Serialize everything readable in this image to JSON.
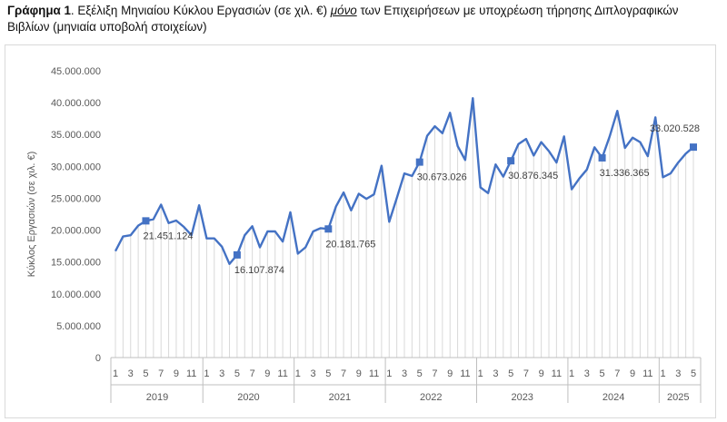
{
  "caption": {
    "label": "Γράφημα 1",
    "text_before": ". Εξέλιξη Μηνιαίου Κύκλου Εργασιών (σε χιλ. €) ",
    "emphasis": "μόνο",
    "text_after": " των Επιχειρήσεων με υποχρέωση τήρησης Διπλογραφικών Βιβλίων (μηνιαία υποβολή στοιχείων)"
  },
  "chart_data": {
    "type": "line",
    "ylabel": "Κύκλος Εργασιών (σε χιλ. €)",
    "ylim": [
      0,
      45000000
    ],
    "y_ticks": [
      "0",
      "5.000.000",
      "10.000.000",
      "15.000.000",
      "20.000.000",
      "25.000.000",
      "30.000.000",
      "35.000.000",
      "40.000.000",
      "45.000.000"
    ],
    "y_tick_values": [
      0,
      5000000,
      10000000,
      15000000,
      20000000,
      25000000,
      30000000,
      35000000,
      40000000,
      45000000
    ],
    "years": [
      {
        "year": "2019",
        "months": 12
      },
      {
        "year": "2020",
        "months": 12
      },
      {
        "year": "2021",
        "months": 12
      },
      {
        "year": "2022",
        "months": 12
      },
      {
        "year": "2023",
        "months": 12
      },
      {
        "year": "2024",
        "months": 12
      },
      {
        "year": "2025",
        "months": 5
      }
    ],
    "month_tick_labels": [
      "1",
      "3",
      "5",
      "7",
      "9",
      "11"
    ],
    "line_color": "#4472c4",
    "drop_line_color": "#d9d9d9",
    "values": [
      16700000,
      19000000,
      19200000,
      20700000,
      21451124,
      21700000,
      24000000,
      21100000,
      21500000,
      20500000,
      19200000,
      23900000,
      18700000,
      18700000,
      17400000,
      14700000,
      16107874,
      19200000,
      20600000,
      17300000,
      19800000,
      19800000,
      18200000,
      22800000,
      16300000,
      17300000,
      19800000,
      20300000,
      20181765,
      23700000,
      25900000,
      23100000,
      25700000,
      24900000,
      25600000,
      30100000,
      21300000,
      25000000,
      28900000,
      28500000,
      30673026,
      34800000,
      36300000,
      35200000,
      38400000,
      33200000,
      31000000,
      40700000,
      26700000,
      25800000,
      30300000,
      28400000,
      30876345,
      33500000,
      34300000,
      31700000,
      33800000,
      32400000,
      30600000,
      34700000,
      26400000,
      28100000,
      29500000,
      33000000,
      31336365,
      34700000,
      38700000,
      32900000,
      34500000,
      33800000,
      31600000,
      37700000,
      28300000,
      28900000,
      30600000,
      32000000,
      33020528
    ],
    "data_labels": [
      {
        "index": 4,
        "text": "21.451.124"
      },
      {
        "index": 16,
        "text": "16.107.874"
      },
      {
        "index": 28,
        "text": "20.181.765"
      },
      {
        "index": 40,
        "text": "30.673.026"
      },
      {
        "index": 52,
        "text": "30.876.345"
      },
      {
        "index": 64,
        "text": "31.336.365"
      },
      {
        "index": 76,
        "text": "33.020.528"
      }
    ]
  }
}
